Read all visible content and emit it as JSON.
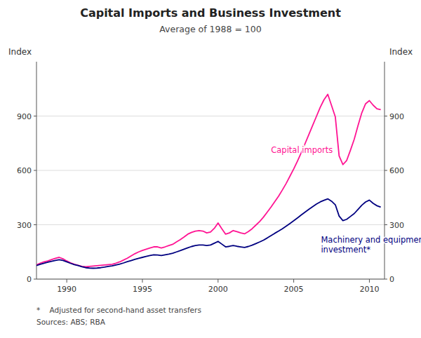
{
  "chart_data": {
    "type": "line",
    "title": "Capital Imports and Business Investment",
    "subtitle": "Average of 1988 = 100",
    "ylabel": "Index",
    "y2label": "Index",
    "notes": [
      "*    Adjusted for second-hand asset transfers",
      "Sources: ABS; RBA"
    ],
    "xlim": [
      1988.0,
      2011.0
    ],
    "xticks": [
      1990,
      1995,
      2000,
      2005,
      2010
    ],
    "ylim": [
      0,
      1200
    ],
    "yticks": [
      0,
      300,
      600,
      900
    ],
    "y2lim": [
      0,
      1200
    ],
    "y2ticks": [
      0,
      300,
      600,
      900
    ],
    "grid": true,
    "annotations": [
      {
        "text": "Capital imports",
        "x": 2003.5,
        "y": 690,
        "color": "#FF1493"
      },
      {
        "text": "Machinery and equipment\ninvestment*",
        "x": 2006.8,
        "y": 245,
        "color": "#000080"
      }
    ],
    "x": [
      1988.0,
      1988.25,
      1988.5,
      1988.75,
      1989.0,
      1989.25,
      1989.5,
      1989.75,
      1990.0,
      1990.25,
      1990.5,
      1990.75,
      1991.0,
      1991.25,
      1991.5,
      1991.75,
      1992.0,
      1992.25,
      1992.5,
      1992.75,
      1993.0,
      1993.25,
      1993.5,
      1993.75,
      1994.0,
      1994.25,
      1994.5,
      1994.75,
      1995.0,
      1995.25,
      1995.5,
      1995.75,
      1996.0,
      1996.25,
      1996.5,
      1996.75,
      1997.0,
      1997.25,
      1997.5,
      1997.75,
      1998.0,
      1998.25,
      1998.5,
      1998.75,
      1999.0,
      1999.25,
      1999.5,
      1999.75,
      2000.0,
      2000.25,
      2000.5,
      2000.75,
      2001.0,
      2001.25,
      2001.5,
      2001.75,
      2002.0,
      2002.25,
      2002.5,
      2002.75,
      2003.0,
      2003.25,
      2003.5,
      2003.75,
      2004.0,
      2004.25,
      2004.5,
      2004.75,
      2005.0,
      2005.25,
      2005.5,
      2005.75,
      2006.0,
      2006.25,
      2006.5,
      2006.75,
      2007.0,
      2007.25,
      2007.5,
      2007.75,
      2008.0,
      2008.25,
      2008.5,
      2008.75,
      2009.0,
      2009.25,
      2009.5,
      2009.75,
      2010.0,
      2010.25,
      2010.5,
      2010.75
    ],
    "series": [
      {
        "color": "#FF1493",
        "values": [
          78,
          88,
          95,
          100,
          108,
          115,
          120,
          112,
          100,
          90,
          82,
          76,
          70,
          68,
          70,
          72,
          74,
          76,
          78,
          80,
          82,
          88,
          95,
          105,
          115,
          128,
          140,
          150,
          158,
          165,
          172,
          178,
          178,
          172,
          178,
          185,
          192,
          205,
          218,
          232,
          248,
          258,
          265,
          268,
          265,
          255,
          260,
          280,
          310,
          278,
          248,
          255,
          268,
          262,
          255,
          250,
          262,
          278,
          298,
          318,
          342,
          370,
          398,
          428,
          458,
          492,
          528,
          568,
          608,
          652,
          698,
          748,
          798,
          848,
          898,
          948,
          990,
          1020,
          958,
          895,
          680,
          632,
          655,
          712,
          772,
          848,
          918,
          968,
          985,
          960,
          940,
          935
        ]
      },
      {
        "color": "#000080",
        "values": [
          75,
          82,
          88,
          93,
          98,
          103,
          107,
          103,
          95,
          87,
          80,
          75,
          68,
          63,
          61,
          60,
          61,
          63,
          66,
          70,
          73,
          78,
          83,
          89,
          96,
          102,
          109,
          115,
          120,
          125,
          130,
          134,
          133,
          130,
          134,
          138,
          143,
          150,
          157,
          165,
          173,
          180,
          185,
          188,
          188,
          185,
          188,
          198,
          208,
          193,
          178,
          181,
          185,
          181,
          178,
          175,
          180,
          187,
          196,
          205,
          215,
          227,
          240,
          253,
          265,
          278,
          292,
          307,
          322,
          338,
          354,
          370,
          385,
          400,
          414,
          426,
          435,
          443,
          430,
          410,
          348,
          323,
          330,
          346,
          362,
          385,
          408,
          426,
          436,
          418,
          405,
          397
        ]
      }
    ]
  }
}
